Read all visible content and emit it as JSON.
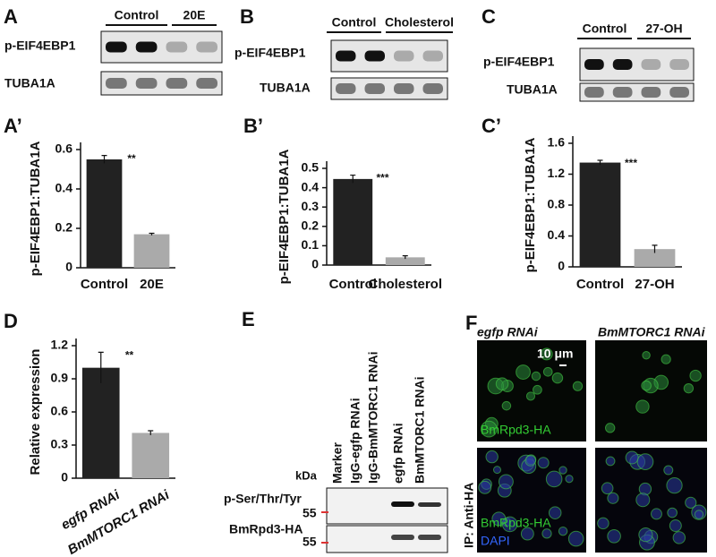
{
  "panels": {
    "labels": [
      "A",
      "B",
      "C",
      "A’",
      "B’",
      "C’",
      "D",
      "E",
      "F"
    ]
  },
  "blots": [
    {
      "groups": [
        "Control",
        "20E"
      ],
      "rows": [
        "p-EIF4EBP1",
        "TUBA1A"
      ]
    },
    {
      "groups": [
        "Control",
        "Cholesterol"
      ],
      "rows": [
        "p-EIF4EBP1",
        "TUBA1A"
      ]
    },
    {
      "groups": [
        "Control",
        "27-OH"
      ],
      "rows": [
        "p-EIF4EBP1",
        "TUBA1A"
      ]
    }
  ],
  "panel_e": {
    "unit": "kDa",
    "lanes": [
      "Marker",
      "IgG-egfp RNAi",
      "IgG-BmMTORC1 RNAi",
      "egfp RNAi",
      "BmMTORC1 RNAi"
    ],
    "rows": [
      "p-Ser/Thr/Tyr",
      "BmRpd3-HA"
    ],
    "markers": [
      "55",
      "55"
    ]
  },
  "panel_f": {
    "columns": [
      "egfp RNAi",
      "BmMTORC1 RNAi"
    ],
    "scale_bar": "10 μm",
    "labels": [
      "BmRpd3-HA",
      "BmRpd3-HA",
      "DAPI"
    ],
    "side_label": "IP: Anti-HA"
  },
  "chart_data": [
    {
      "type": "bar",
      "y_label": "p-EIF4EBP1:TUBA1A",
      "categories": [
        "Control",
        "20E"
      ],
      "values": [
        0.55,
        0.17
      ],
      "errors": [
        0.02,
        0.005
      ],
      "colors": [
        "#222222",
        "#aaaaaa"
      ],
      "ylim": [
        0,
        0.6
      ],
      "yticks": [
        0,
        0.2,
        0.4,
        0.6
      ],
      "annotation": "**"
    },
    {
      "type": "bar",
      "y_label": "p-EIF4EBP1:TUBA1A",
      "categories": [
        "Control",
        "Cholesterol"
      ],
      "values": [
        0.445,
        0.04
      ],
      "errors": [
        0.02,
        0.008
      ],
      "colors": [
        "#222222",
        "#aaaaaa"
      ],
      "ylim": [
        0,
        0.5
      ],
      "yticks": [
        0,
        0.1,
        0.2,
        0.3,
        0.4,
        0.5
      ],
      "annotation": "***"
    },
    {
      "type": "bar",
      "y_label": "p-EIF4EBP1:TUBA1A",
      "categories": [
        "Control",
        "27-OH"
      ],
      "values": [
        1.35,
        0.23
      ],
      "errors": [
        0.03,
        0.05
      ],
      "colors": [
        "#222222",
        "#aaaaaa"
      ],
      "ylim": [
        0,
        1.6
      ],
      "yticks": [
        0,
        0.4,
        0.8,
        1.2,
        1.6
      ],
      "annotation": "***"
    },
    {
      "type": "bar",
      "y_label": "Relative expression",
      "categories": [
        "egfp RNAi",
        "BmMTORC1 RNAi"
      ],
      "values": [
        1.0,
        0.41
      ],
      "errors": [
        0.14,
        0.02
      ],
      "colors": [
        "#222222",
        "#aaaaaa"
      ],
      "ylim": [
        0,
        1.2
      ],
      "yticks": [
        0,
        0.3,
        0.6,
        0.9,
        1.2
      ],
      "annotation": "**"
    }
  ]
}
